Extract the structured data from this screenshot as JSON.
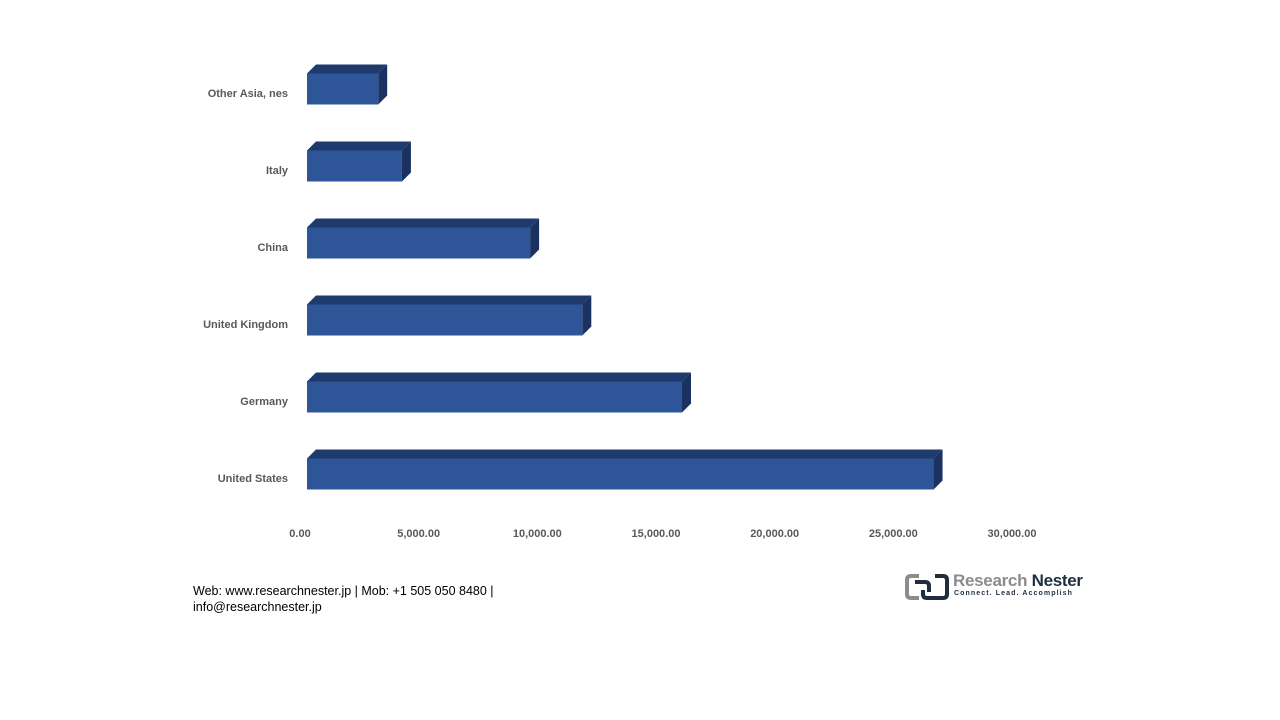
{
  "chart_data": {
    "type": "bar",
    "orientation": "horizontal",
    "categories": [
      "Other Asia, nes",
      "Italy",
      "China",
      "United Kingdom",
      "Germany",
      "United States"
    ],
    "values": [
      3000,
      4000,
      9400,
      11600,
      15800,
      26400
    ],
    "xlim": [
      0,
      30000
    ],
    "x_ticks": [
      "0.00",
      "5,000.00",
      "10,000.00",
      "15,000.00",
      "20,000.00",
      "25,000.00",
      "30,000.00"
    ],
    "title": "",
    "xlabel": "",
    "ylabel": "",
    "grid": false,
    "legend": "none",
    "colors": {
      "front": "#2e5597",
      "top": "#1f3a6d",
      "side": "#1b3260"
    }
  },
  "footer": {
    "contact_line1": "Web: www.researchnester.jp | Mob: +1 505 050 8480 |",
    "contact_line2": "info@researchnester.jp"
  },
  "logo": {
    "name_part1": "Research",
    "name_part2": "Nester",
    "tagline": "Connect. Lead. Accomplish"
  }
}
